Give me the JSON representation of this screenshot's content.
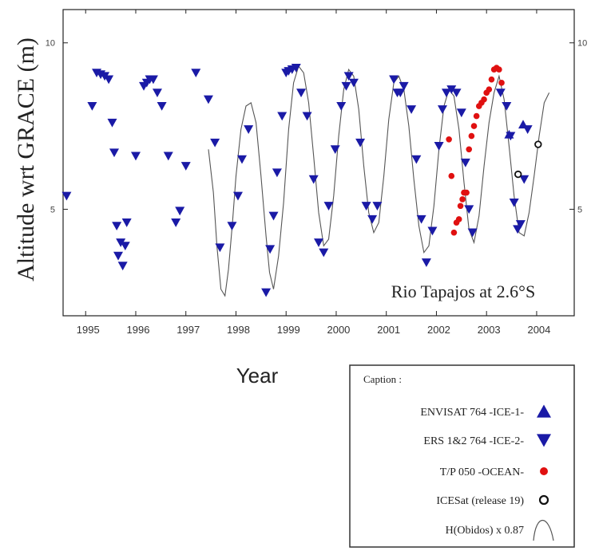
{
  "chart_data": {
    "type": "scatter",
    "ylabel": "Altitude wrt GRACE (m)",
    "xlabel": "Year",
    "annotation": "Rio Tapajos at 2.6°S",
    "xlim": [
      1994.55,
      2004.75
    ],
    "ylim": [
      1.8,
      11.0
    ],
    "x_ticks": [
      1995,
      1996,
      1997,
      1998,
      1999,
      2000,
      2001,
      2002,
      2003,
      2004
    ],
    "x_tick_labels": [
      "1995",
      "1996",
      "1997",
      "1998",
      "1999",
      "2000",
      "2001",
      "2002",
      "2003",
      "2004"
    ],
    "y_ticks": [
      5,
      10
    ],
    "y_tick_labels": [
      "5",
      "10"
    ],
    "grid": false,
    "legend_position": "bottom-right",
    "legend_title": "Caption :",
    "colors": {
      "ers": "#1a1aa6",
      "envisat": "#1a1aa6",
      "tp": "#e01010",
      "icesat": "#111111",
      "curve": "#555555"
    },
    "series": [
      {
        "name": "ENVISAT 764 -ICE-1-",
        "marker": "triangle-up",
        "x": [
          2003.45,
          2003.73
        ],
        "y": [
          7.25,
          7.55
        ]
      },
      {
        "name": "ERS 1&2  764 -ICE-2-",
        "marker": "triangle-down",
        "x": [
          1994.62,
          1995.13,
          1995.22,
          1995.3,
          1995.38,
          1995.46,
          1995.53,
          1995.57,
          1995.62,
          1995.65,
          1995.7,
          1995.74,
          1995.79,
          1995.82,
          1996.0,
          1996.16,
          1996.22,
          1996.28,
          1996.35,
          1996.43,
          1996.52,
          1996.65,
          1996.8,
          1996.88,
          1997.0,
          1997.2,
          1997.45,
          1997.58,
          1997.68,
          1997.92,
          1998.04,
          1998.12,
          1998.25,
          1998.6,
          1998.68,
          1998.75,
          1998.82,
          1998.92,
          1999.0,
          1999.05,
          1999.12,
          1999.2,
          1999.3,
          1999.42,
          1999.55,
          1999.65,
          1999.75,
          1999.85,
          1999.98,
          2000.1,
          2000.2,
          2000.25,
          2000.35,
          2000.48,
          2000.6,
          2000.72,
          2000.82,
          2001.15,
          2001.22,
          2001.28,
          2001.35,
          2001.5,
          2001.6,
          2001.7,
          2001.8,
          2001.92,
          2002.05,
          2002.12,
          2002.2,
          2002.3,
          2002.4,
          2002.5,
          2002.58,
          2002.65,
          2002.72,
          2003.28,
          2003.4,
          2003.48,
          2003.55,
          2003.62,
          2003.68,
          2003.75,
          2003.82
        ],
        "y": [
          5.4,
          8.1,
          9.1,
          9.05,
          9.0,
          8.9,
          7.6,
          6.7,
          4.5,
          3.6,
          4.0,
          3.3,
          3.9,
          4.6,
          6.6,
          8.7,
          8.8,
          8.9,
          8.9,
          8.5,
          8.1,
          6.6,
          4.6,
          4.95,
          6.3,
          9.1,
          8.3,
          7.0,
          3.85,
          4.5,
          5.4,
          6.5,
          7.4,
          2.5,
          3.8,
          4.8,
          6.1,
          7.8,
          9.1,
          9.15,
          9.2,
          9.25,
          8.5,
          7.8,
          5.9,
          4.0,
          3.7,
          5.1,
          6.8,
          8.1,
          8.7,
          9.0,
          8.8,
          7.0,
          5.1,
          4.7,
          5.1,
          8.9,
          8.5,
          8.5,
          8.7,
          8.0,
          6.5,
          4.7,
          3.4,
          4.35,
          6.9,
          8.0,
          8.5,
          8.6,
          8.5,
          7.9,
          6.4,
          5.0,
          4.3,
          8.5,
          8.1,
          7.2,
          5.2,
          4.4,
          4.55,
          5.9,
          7.4
        ]
      },
      {
        "name": "T/P 050 -OCEAN-",
        "marker": "circle-filled",
        "x": [
          2002.25,
          2002.3,
          2002.35,
          2002.4,
          2002.45,
          2002.48,
          2002.52,
          2002.55,
          2002.6,
          2002.65,
          2002.7,
          2002.75,
          2002.8,
          2002.85,
          2002.9,
          2002.95,
          2003.0,
          2003.05,
          2003.1,
          2003.15,
          2003.2,
          2003.25,
          2003.3
        ],
        "y": [
          7.1,
          6.0,
          4.3,
          4.6,
          4.7,
          5.1,
          5.3,
          5.5,
          5.5,
          6.8,
          7.2,
          7.5,
          7.8,
          8.1,
          8.2,
          8.3,
          8.5,
          8.6,
          8.9,
          9.2,
          9.25,
          9.2,
          8.8
        ]
      },
      {
        "name": "ICESat (release 19)",
        "marker": "circle-open",
        "x": [
          2003.63,
          2004.03
        ],
        "y": [
          6.05,
          6.95
        ]
      },
      {
        "name": "H(Obidos) x 0.87",
        "marker": "line",
        "x": [
          1997.45,
          1997.55,
          1997.62,
          1997.7,
          1997.78,
          1997.85,
          1997.93,
          1998.0,
          1998.1,
          1998.2,
          1998.3,
          1998.4,
          1998.5,
          1998.6,
          1998.67,
          1998.75,
          1998.85,
          1998.95,
          1999.05,
          1999.15,
          1999.25,
          1999.35,
          1999.45,
          1999.55,
          1999.65,
          1999.75,
          1999.85,
          1999.95,
          2000.05,
          2000.15,
          2000.25,
          2000.35,
          2000.45,
          2000.55,
          2000.65,
          2000.75,
          2000.85,
          2000.95,
          2001.05,
          2001.15,
          2001.25,
          2001.35,
          2001.45,
          2001.55,
          2001.65,
          2001.75,
          2001.85,
          2001.95,
          2002.05,
          2002.15,
          2002.25,
          2002.35,
          2002.45,
          2002.55,
          2002.65,
          2002.75,
          2002.85,
          2002.95,
          2003.05,
          2003.15,
          2003.25,
          2003.35,
          2003.45,
          2003.55,
          2003.65,
          2003.75,
          2003.85,
          2003.95,
          2004.05,
          2004.15,
          2004.25
        ],
        "y": [
          6.8,
          5.5,
          3.9,
          2.6,
          2.4,
          3.2,
          4.6,
          6.0,
          7.4,
          8.1,
          8.2,
          7.6,
          6.0,
          4.2,
          3.1,
          2.6,
          3.6,
          5.2,
          7.4,
          8.8,
          9.3,
          9.1,
          8.2,
          6.6,
          4.9,
          3.9,
          4.1,
          5.4,
          7.2,
          8.6,
          9.2,
          9.0,
          8.0,
          6.3,
          4.9,
          4.3,
          4.6,
          6.0,
          7.7,
          8.8,
          9.0,
          8.6,
          7.5,
          5.9,
          4.5,
          3.7,
          3.9,
          5.1,
          6.8,
          8.1,
          8.6,
          8.4,
          7.4,
          5.8,
          4.4,
          4.0,
          4.8,
          6.3,
          7.6,
          8.5,
          9.0,
          8.3,
          6.9,
          5.4,
          4.3,
          4.2,
          4.9,
          6.0,
          7.2,
          8.2,
          8.5
        ]
      }
    ]
  }
}
